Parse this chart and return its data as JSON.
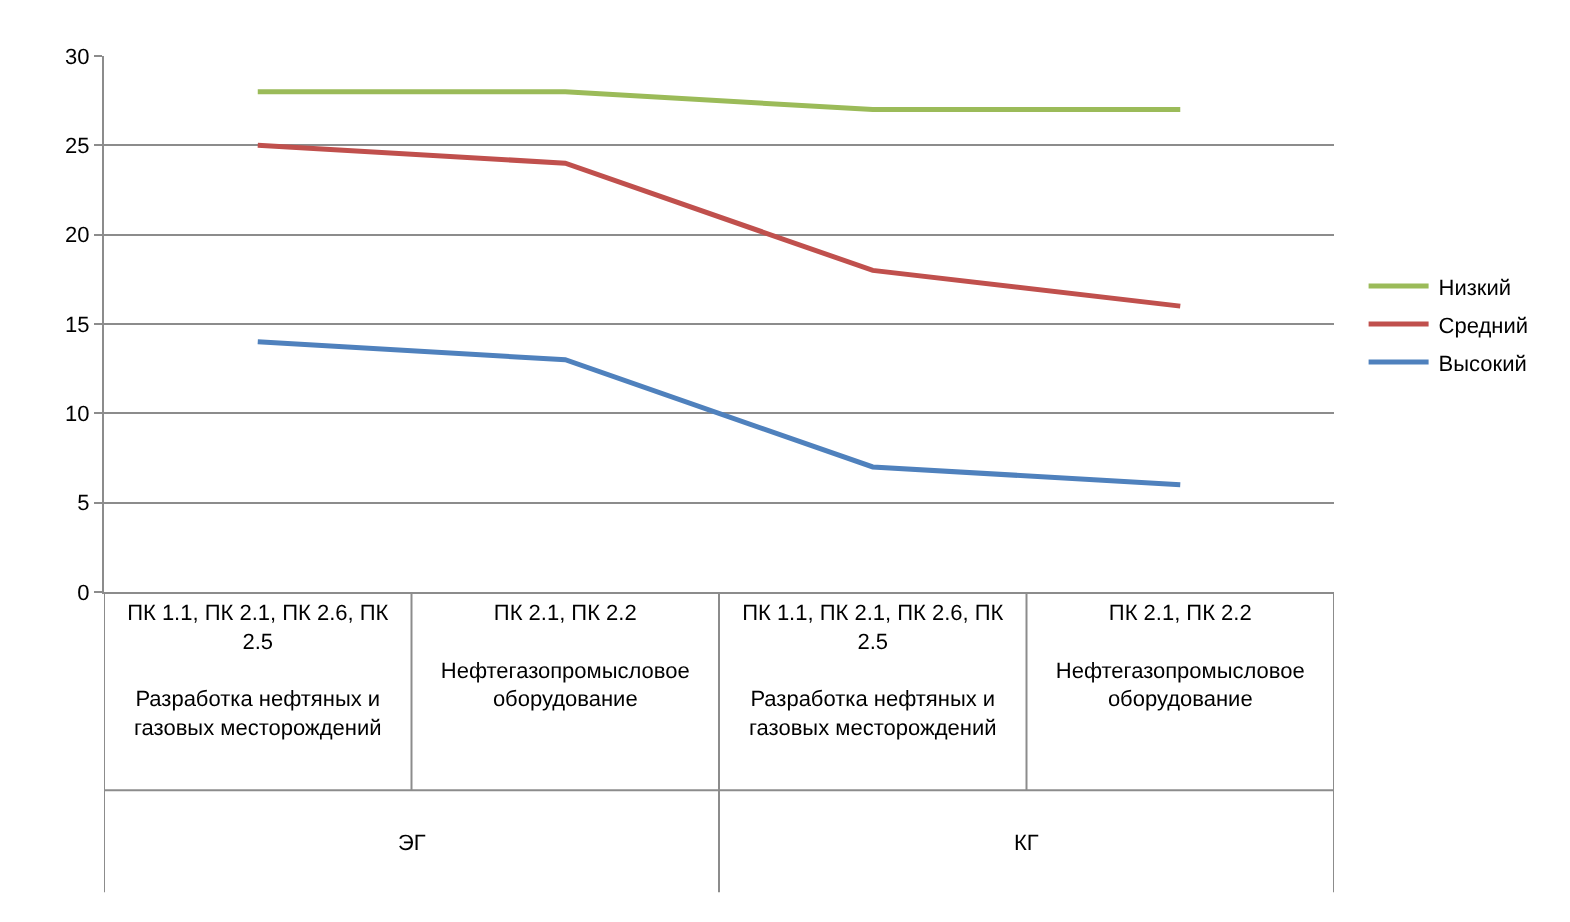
{
  "chart_data": {
    "type": "line",
    "categories": [
      "ПК 1.1, ПК 2.1, ПК 2.6, ПК 2.5\n\nРазработка нефтяных и газовых месторождений",
      "ПК 2.1, ПК 2.2\n\nНефтегазопромысловое оборудование",
      "ПК 1.1, ПК 2.1, ПК 2.6, ПК 2.5\n\nРазработка нефтяных и газовых месторождений",
      "ПК 2.1, ПК 2.2\n\nНефтегазопромысловое оборудование"
    ],
    "series": [
      {
        "name": "Низкий",
        "color": "#9bbb59",
        "values": [
          28,
          28,
          27,
          27
        ]
      },
      {
        "name": "Средний",
        "color": "#c0504d",
        "values": [
          25,
          24,
          18,
          16
        ]
      },
      {
        "name": "Высокий",
        "color": "#4f81bd",
        "values": [
          14,
          13,
          7,
          6
        ]
      }
    ],
    "annotations": [
      "ЭГ",
      "КГ"
    ],
    "ylim": [
      0,
      30
    ],
    "yticks": [
      0,
      5,
      10,
      15,
      20,
      25,
      30
    ],
    "grid": "y",
    "legend": "right",
    "marker": "none",
    "line_style": "solid"
  }
}
